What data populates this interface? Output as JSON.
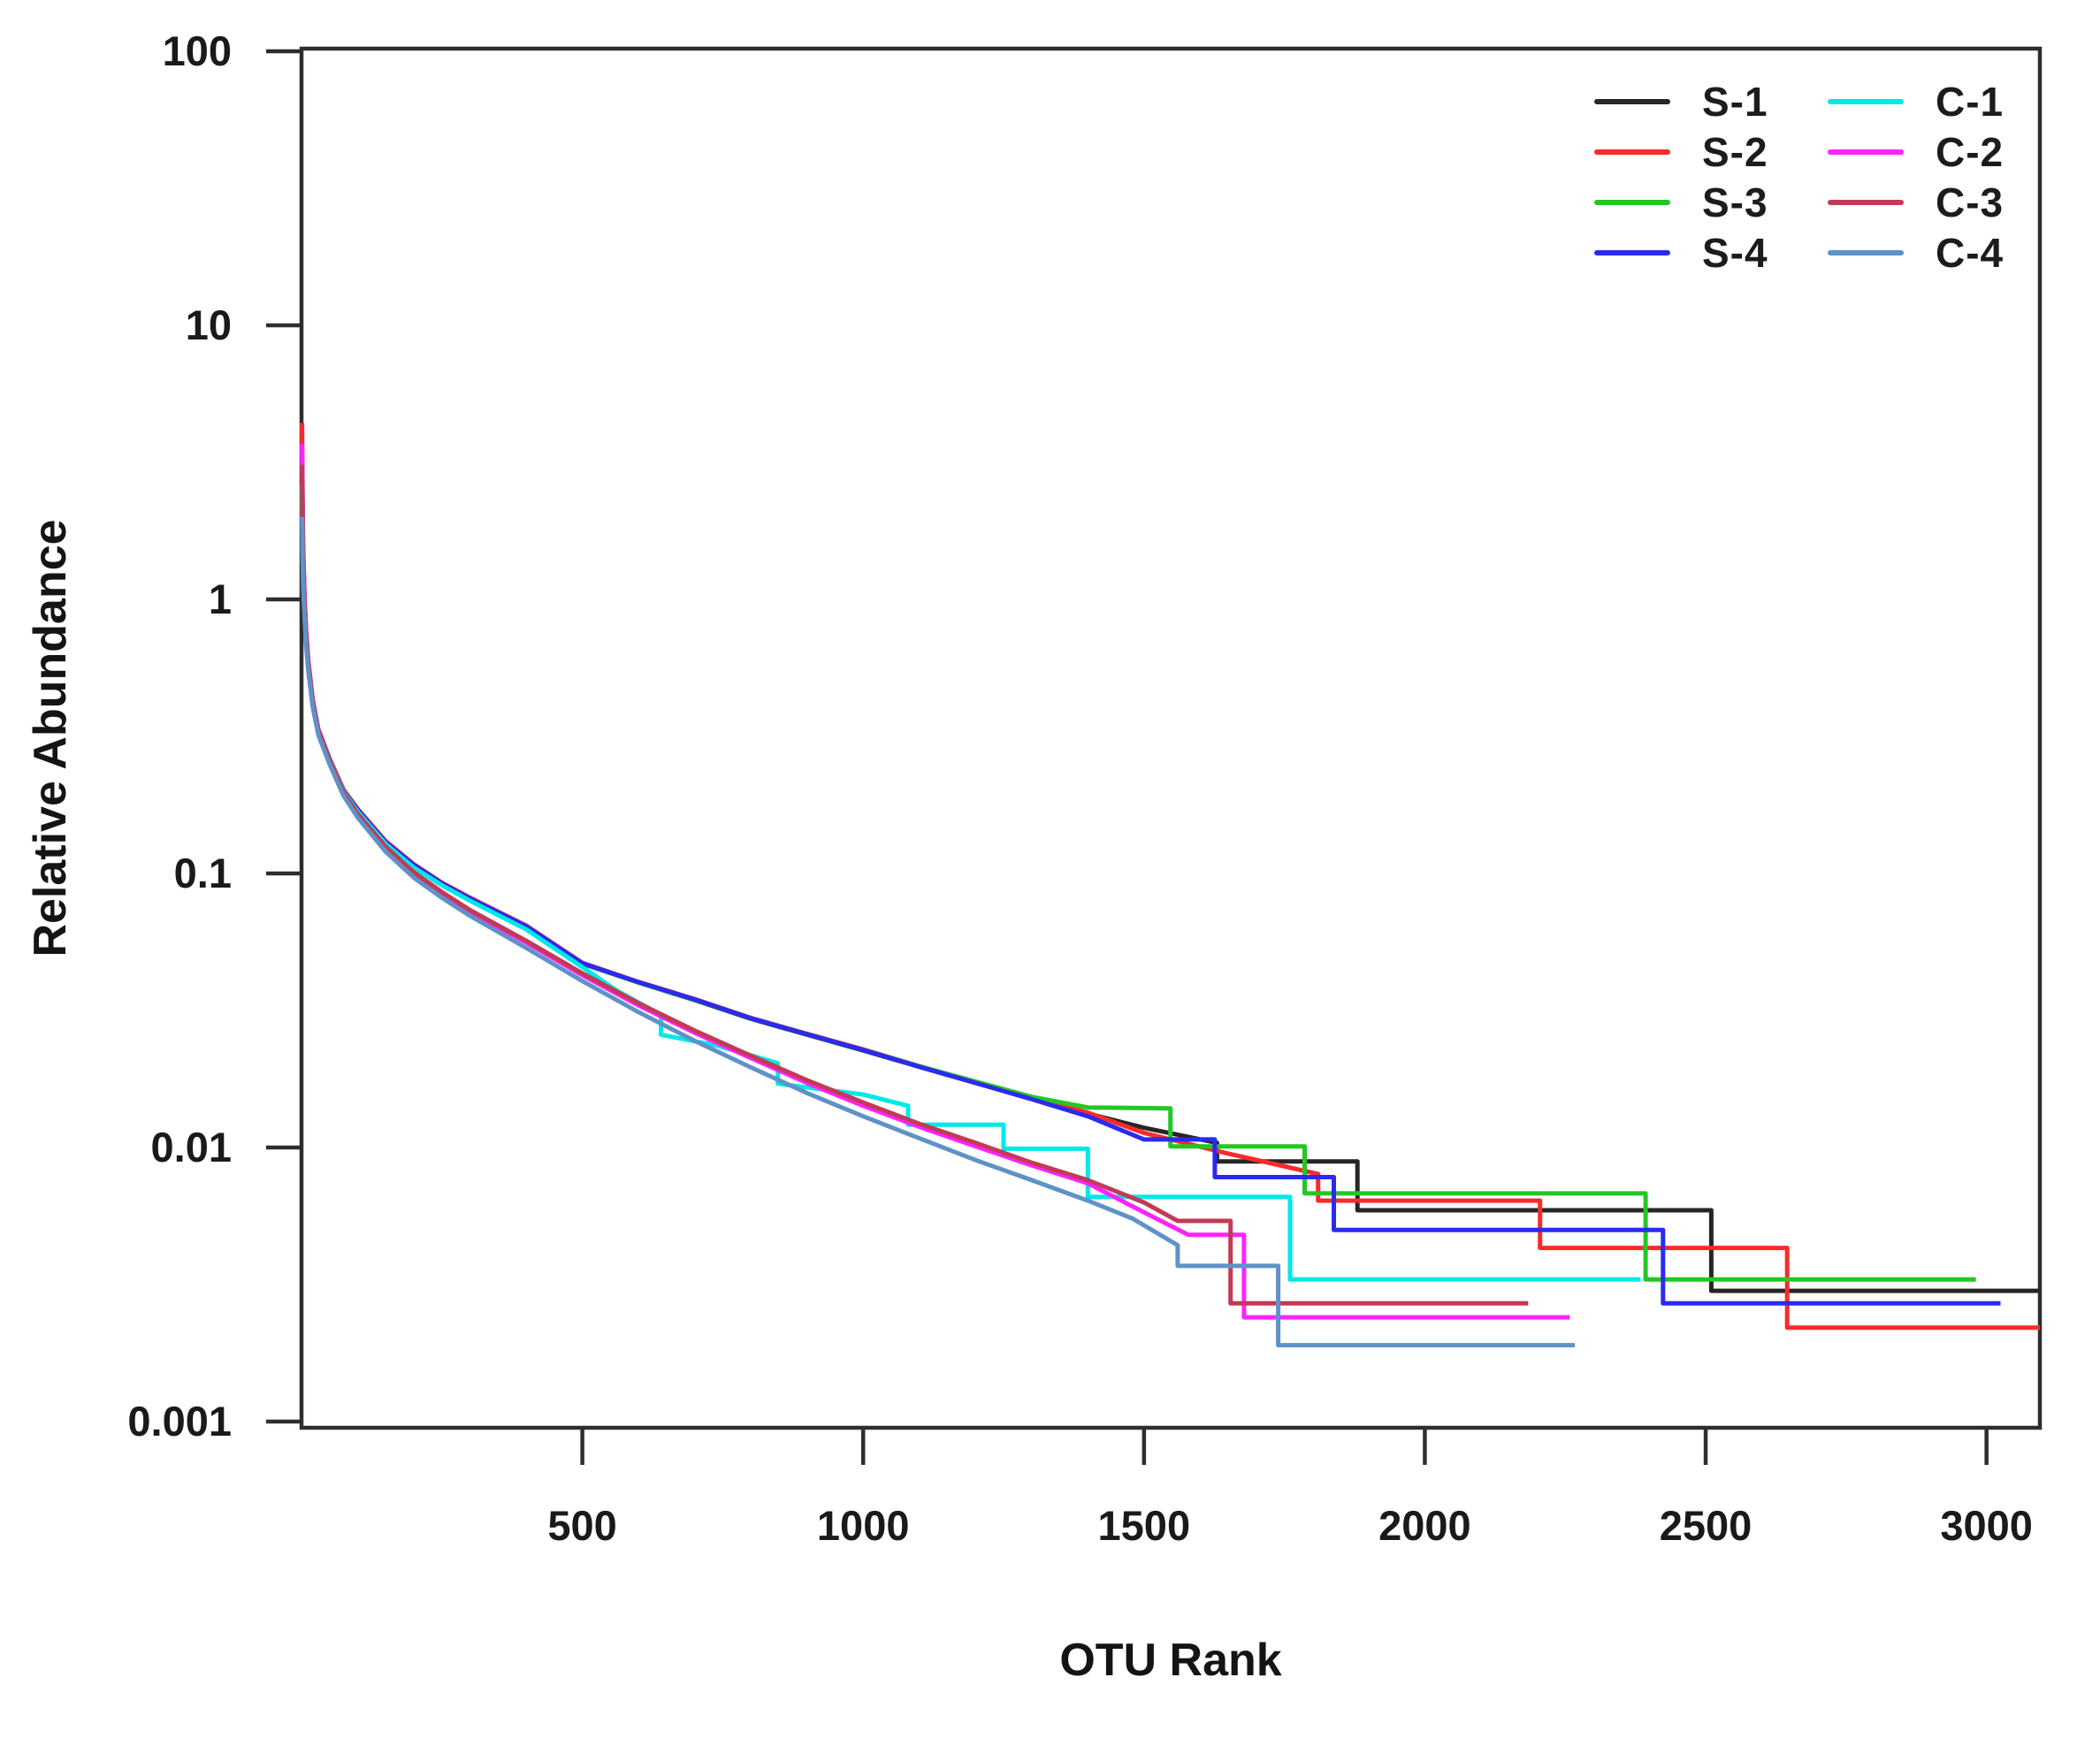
{
  "figure": {
    "background": "#ffffff",
    "frame_color": "#2e2e2e",
    "text_color": "#1a1a1a"
  },
  "chart_data": {
    "type": "line",
    "title": "",
    "xlabel": "OTU Rank",
    "ylabel": "Relative Abundance",
    "x_scale": "linear",
    "y_scale": "log10",
    "xlim": [
      0,
      3095
    ],
    "ylim": [
      0.00095,
      102
    ],
    "grid": false,
    "legend_position": "top-right-inside",
    "x_ticks": {
      "values": [
        500,
        1000,
        1500,
        2000,
        2500,
        3000
      ],
      "labels": [
        "500",
        "1000",
        "1500",
        "2000",
        "2500",
        "3000"
      ]
    },
    "y_ticks": {
      "values": [
        100,
        10,
        1,
        0.1,
        0.01,
        0.001
      ],
      "labels": [
        "100",
        "10",
        "1",
        "0.1",
        "0.01",
        "0.001"
      ]
    },
    "series": [
      {
        "name": "S-1",
        "color": "#262626",
        "points": [
          [
            1,
            2.9
          ],
          [
            2,
            1.7
          ],
          [
            3,
            1.3
          ],
          [
            5,
            1.0
          ],
          [
            8,
            0.75
          ],
          [
            12,
            0.58
          ],
          [
            20,
            0.42
          ],
          [
            30,
            0.33
          ],
          [
            50,
            0.26
          ],
          [
            75,
            0.2
          ],
          [
            100,
            0.17
          ],
          [
            150,
            0.13
          ],
          [
            200,
            0.107
          ],
          [
            250,
            0.092
          ],
          [
            300,
            0.081
          ],
          [
            400,
            0.064
          ],
          [
            500,
            0.047
          ],
          [
            600,
            0.04
          ],
          [
            700,
            0.0345
          ],
          [
            800,
            0.0295
          ],
          [
            900,
            0.0258
          ],
          [
            1000,
            0.0226
          ],
          [
            1100,
            0.0197
          ],
          [
            1200,
            0.0172
          ],
          [
            1300,
            0.0151
          ],
          [
            1400,
            0.0133
          ],
          [
            1500,
            0.0118
          ],
          [
            1630,
            0.0104
          ],
          [
            1630,
            0.0089
          ],
          [
            1880,
            0.0089
          ],
          [
            1880,
            0.0059
          ],
          [
            2510,
            0.0059
          ],
          [
            2510,
            0.003
          ],
          [
            3095,
            0.003
          ]
        ]
      },
      {
        "name": "S-2",
        "color": "#fa2a2a",
        "points": [
          [
            1,
            4.4
          ],
          [
            2,
            2.2
          ],
          [
            3,
            1.55
          ],
          [
            5,
            1.08
          ],
          [
            8,
            0.78
          ],
          [
            12,
            0.6
          ],
          [
            20,
            0.43
          ],
          [
            30,
            0.335
          ],
          [
            50,
            0.262
          ],
          [
            75,
            0.202
          ],
          [
            100,
            0.172
          ],
          [
            150,
            0.131
          ],
          [
            200,
            0.108
          ],
          [
            250,
            0.0925
          ],
          [
            300,
            0.0815
          ],
          [
            400,
            0.0645
          ],
          [
            500,
            0.0472
          ],
          [
            600,
            0.0402
          ],
          [
            700,
            0.0348
          ],
          [
            800,
            0.0297
          ],
          [
            900,
            0.026
          ],
          [
            1000,
            0.0228
          ],
          [
            1100,
            0.0198
          ],
          [
            1200,
            0.0173
          ],
          [
            1300,
            0.0152
          ],
          [
            1400,
            0.0134
          ],
          [
            1500,
            0.0113
          ],
          [
            1650,
            0.0095
          ],
          [
            1810,
            0.008
          ],
          [
            1810,
            0.0064
          ],
          [
            2205,
            0.0064
          ],
          [
            2205,
            0.0043
          ],
          [
            2645,
            0.0043
          ],
          [
            2645,
            0.0022
          ],
          [
            3095,
            0.0022
          ]
        ]
      },
      {
        "name": "S-3",
        "color": "#23c723",
        "points": [
          [
            1,
            2.3
          ],
          [
            2,
            1.5
          ],
          [
            3,
            1.2
          ],
          [
            5,
            0.95
          ],
          [
            8,
            0.72
          ],
          [
            12,
            0.57
          ],
          [
            20,
            0.415
          ],
          [
            30,
            0.328
          ],
          [
            50,
            0.258
          ],
          [
            75,
            0.199
          ],
          [
            100,
            0.169
          ],
          [
            150,
            0.129
          ],
          [
            200,
            0.106
          ],
          [
            250,
            0.0915
          ],
          [
            300,
            0.0805
          ],
          [
            400,
            0.0638
          ],
          [
            500,
            0.0468
          ],
          [
            600,
            0.04
          ],
          [
            700,
            0.0346
          ],
          [
            800,
            0.0296
          ],
          [
            900,
            0.0259
          ],
          [
            1000,
            0.0227
          ],
          [
            1100,
            0.0198
          ],
          [
            1200,
            0.0174
          ],
          [
            1300,
            0.0153
          ],
          [
            1400,
            0.014
          ],
          [
            1547,
            0.0139
          ],
          [
            1547,
            0.0101
          ],
          [
            1786,
            0.0101
          ],
          [
            1786,
            0.0068
          ],
          [
            2393,
            0.0068
          ],
          [
            2393,
            0.0033
          ],
          [
            2981,
            0.0033
          ]
        ]
      },
      {
        "name": "S-4",
        "color": "#2a2af0",
        "points": [
          [
            1,
            3.3
          ],
          [
            2,
            1.9
          ],
          [
            3,
            1.4
          ],
          [
            5,
            1.02
          ],
          [
            8,
            0.76
          ],
          [
            12,
            0.59
          ],
          [
            20,
            0.425
          ],
          [
            30,
            0.332
          ],
          [
            50,
            0.26
          ],
          [
            75,
            0.2
          ],
          [
            100,
            0.171
          ],
          [
            150,
            0.13
          ],
          [
            200,
            0.1075
          ],
          [
            250,
            0.092
          ],
          [
            300,
            0.081
          ],
          [
            400,
            0.0642
          ],
          [
            500,
            0.047
          ],
          [
            600,
            0.0401
          ],
          [
            700,
            0.0347
          ],
          [
            800,
            0.0296
          ],
          [
            900,
            0.0259
          ],
          [
            1000,
            0.0227
          ],
          [
            1100,
            0.0197
          ],
          [
            1200,
            0.0172
          ],
          [
            1300,
            0.015
          ],
          [
            1400,
            0.013
          ],
          [
            1500,
            0.0107
          ],
          [
            1626,
            0.0107
          ],
          [
            1626,
            0.0078
          ],
          [
            1838,
            0.0078
          ],
          [
            1838,
            0.005
          ],
          [
            2424,
            0.005
          ],
          [
            2424,
            0.0027
          ],
          [
            3025,
            0.0027
          ]
        ]
      },
      {
        "name": "C-1",
        "color": "#00e8e8",
        "points": [
          [
            1,
            2.6
          ],
          [
            2,
            1.6
          ],
          [
            3,
            1.25
          ],
          [
            5,
            0.98
          ],
          [
            8,
            0.73
          ],
          [
            12,
            0.575
          ],
          [
            20,
            0.418
          ],
          [
            30,
            0.33
          ],
          [
            50,
            0.258
          ],
          [
            75,
            0.199
          ],
          [
            100,
            0.168
          ],
          [
            150,
            0.128
          ],
          [
            200,
            0.105
          ],
          [
            250,
            0.0905
          ],
          [
            300,
            0.0795
          ],
          [
            400,
            0.0625
          ],
          [
            500,
            0.0455
          ],
          [
            560,
            0.0375
          ],
          [
            640,
            0.0305
          ],
          [
            640,
            0.0258
          ],
          [
            742,
            0.0235
          ],
          [
            848,
            0.0203
          ],
          [
            848,
            0.0171
          ],
          [
            1000,
            0.0156
          ],
          [
            1080,
            0.0142
          ],
          [
            1080,
            0.0121
          ],
          [
            1250,
            0.0121
          ],
          [
            1250,
            0.0099
          ],
          [
            1400,
            0.0099
          ],
          [
            1400,
            0.0066
          ],
          [
            1760,
            0.0066
          ],
          [
            1760,
            0.0033
          ],
          [
            2384,
            0.0033
          ]
        ]
      },
      {
        "name": "C-2",
        "color": "#ff22ff",
        "points": [
          [
            1,
            3.7
          ],
          [
            2,
            2.0
          ],
          [
            3,
            1.45
          ],
          [
            5,
            1.05
          ],
          [
            8,
            0.76
          ],
          [
            12,
            0.59
          ],
          [
            20,
            0.42
          ],
          [
            30,
            0.33
          ],
          [
            50,
            0.256
          ],
          [
            75,
            0.196
          ],
          [
            100,
            0.164
          ],
          [
            150,
            0.124
          ],
          [
            200,
            0.1
          ],
          [
            250,
            0.0845
          ],
          [
            300,
            0.0725
          ],
          [
            400,
            0.056
          ],
          [
            500,
            0.0425
          ],
          [
            600,
            0.033
          ],
          [
            700,
            0.0262
          ],
          [
            800,
            0.0212
          ],
          [
            900,
            0.0172
          ],
          [
            1000,
            0.0142
          ],
          [
            1100,
            0.0119
          ],
          [
            1200,
            0.0101
          ],
          [
            1300,
            0.0086
          ],
          [
            1400,
            0.0074
          ],
          [
            1500,
            0.0058
          ],
          [
            1579,
            0.0048
          ],
          [
            1678,
            0.0048
          ],
          [
            1678,
            0.0024
          ],
          [
            2258,
            0.0024
          ]
        ]
      },
      {
        "name": "C-3",
        "color": "#c23a55",
        "points": [
          [
            1,
            3.1
          ],
          [
            2,
            1.85
          ],
          [
            3,
            1.4
          ],
          [
            5,
            1.03
          ],
          [
            8,
            0.75
          ],
          [
            12,
            0.585
          ],
          [
            20,
            0.419
          ],
          [
            30,
            0.329
          ],
          [
            50,
            0.257
          ],
          [
            75,
            0.197
          ],
          [
            100,
            0.165
          ],
          [
            150,
            0.125
          ],
          [
            200,
            0.101
          ],
          [
            250,
            0.0855
          ],
          [
            300,
            0.0735
          ],
          [
            400,
            0.0568
          ],
          [
            500,
            0.0432
          ],
          [
            600,
            0.0336
          ],
          [
            700,
            0.0267
          ],
          [
            800,
            0.0216
          ],
          [
            900,
            0.0176
          ],
          [
            1000,
            0.0146
          ],
          [
            1100,
            0.0122
          ],
          [
            1200,
            0.0104
          ],
          [
            1300,
            0.0088
          ],
          [
            1400,
            0.0076
          ],
          [
            1500,
            0.0063
          ],
          [
            1560,
            0.0054
          ],
          [
            1654,
            0.0054
          ],
          [
            1654,
            0.0027
          ],
          [
            2184,
            0.0027
          ]
        ]
      },
      {
        "name": "C-4",
        "color": "#5e92c8",
        "points": [
          [
            1,
            2.0
          ],
          [
            2,
            1.35
          ],
          [
            3,
            1.1
          ],
          [
            5,
            0.9
          ],
          [
            8,
            0.69
          ],
          [
            12,
            0.55
          ],
          [
            20,
            0.405
          ],
          [
            30,
            0.32
          ],
          [
            50,
            0.25
          ],
          [
            75,
            0.192
          ],
          [
            100,
            0.16
          ],
          [
            150,
            0.12
          ],
          [
            200,
            0.0965
          ],
          [
            250,
            0.0815
          ],
          [
            300,
            0.07
          ],
          [
            400,
            0.0535
          ],
          [
            500,
            0.0405
          ],
          [
            600,
            0.0312
          ],
          [
            700,
            0.0245
          ],
          [
            800,
            0.0196
          ],
          [
            900,
            0.0158
          ],
          [
            1000,
            0.013
          ],
          [
            1100,
            0.0108
          ],
          [
            1200,
            0.009
          ],
          [
            1300,
            0.0076
          ],
          [
            1400,
            0.0064
          ],
          [
            1480,
            0.0055
          ],
          [
            1560,
            0.0044
          ],
          [
            1560,
            0.0037
          ],
          [
            1739,
            0.0037
          ],
          [
            1739,
            0.0019
          ],
          [
            2267,
            0.0019
          ]
        ]
      }
    ]
  }
}
